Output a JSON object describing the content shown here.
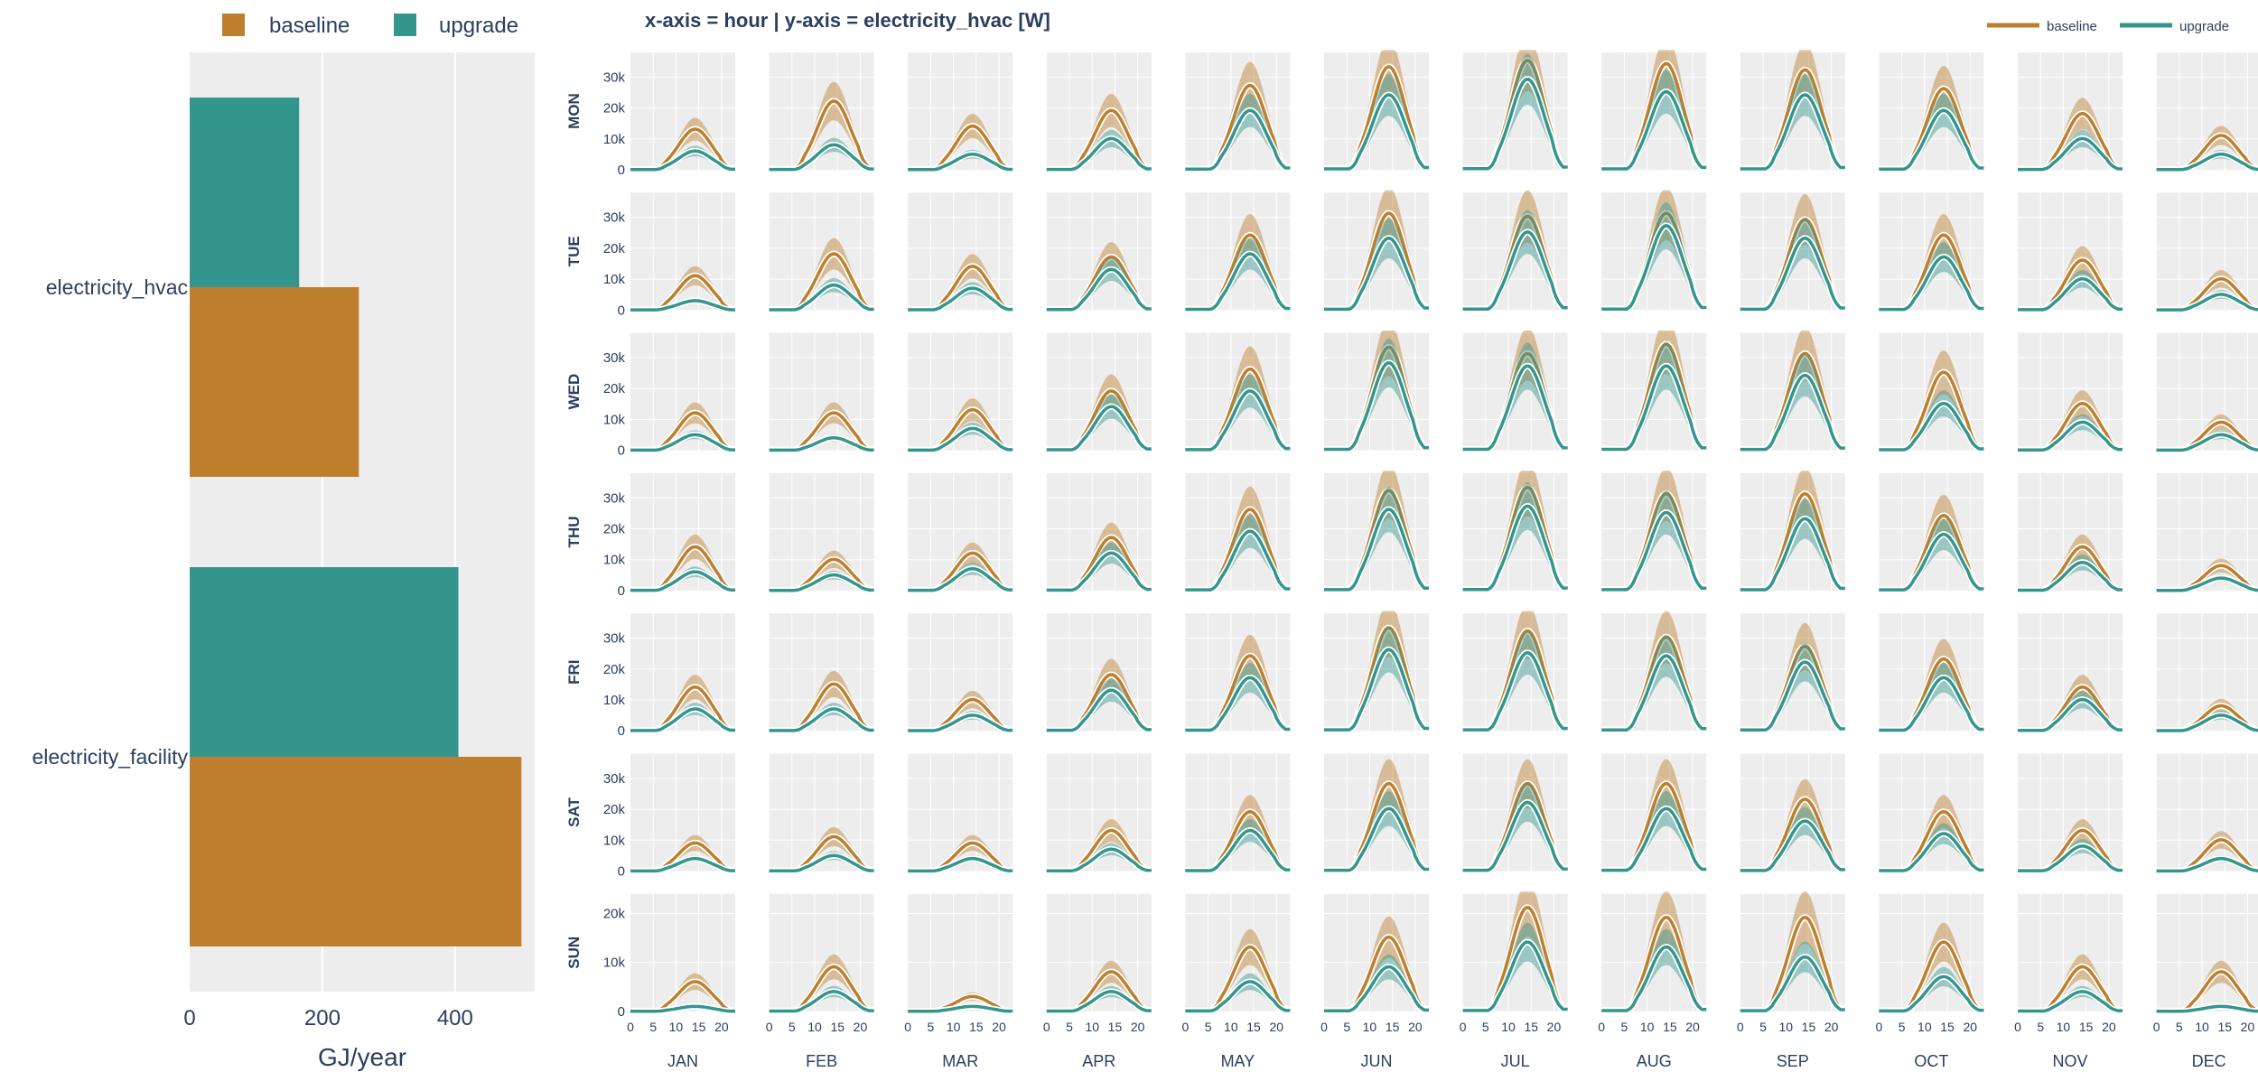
{
  "colors": {
    "baseline": "#BD7E2D",
    "upgrade": "#34958D",
    "plot_bg": "#EDEDED",
    "grid": "#FFFFFF",
    "text": "#2A3F5F"
  },
  "legend": {
    "baseline_label": "baseline",
    "upgrade_label": "upgrade"
  },
  "grid_title": "x-axis = hour | y-axis = electricity_hvac [W]",
  "chart_data": [
    {
      "type": "bar",
      "orientation": "horizontal",
      "categories": [
        "electricity_hvac",
        "electricity_facility"
      ],
      "series": [
        {
          "name": "baseline",
          "values": [
            255,
            500
          ]
        },
        {
          "name": "upgrade",
          "values": [
            165,
            405
          ]
        }
      ],
      "xlabel": "GJ/year",
      "xlim": [
        0,
        520
      ],
      "xticks": [
        0,
        200,
        400
      ],
      "legend_position": "top"
    },
    {
      "type": "line",
      "facets": "row = weekday, column = month",
      "rows": [
        "MON",
        "TUE",
        "WED",
        "THU",
        "FRI",
        "SAT",
        "SUN"
      ],
      "columns": [
        "JAN",
        "FEB",
        "MAR",
        "APR",
        "MAY",
        "JUN",
        "JUL",
        "AUG",
        "SEP",
        "OCT",
        "NOV",
        "DEC"
      ],
      "x": "hour",
      "xlim": [
        0,
        23
      ],
      "xticks": [
        0,
        5,
        10,
        15,
        20
      ],
      "ylim_weekday": [
        0,
        38000
      ],
      "yticks_weekday": [
        "0",
        "10k",
        "20k",
        "30k"
      ],
      "ylim_sun": [
        0,
        24000
      ],
      "yticks_sun": [
        "0",
        "10k",
        "20k"
      ],
      "shape_note": "daily profile: near zero 0-5h, rising 7-8h, peak about 14-15h, falling 19-21h",
      "series": [
        {
          "name": "baseline",
          "peak_W": [
            [
              13000,
              22000,
              14000,
              19000,
              27000,
              33000,
              35000,
              34000,
              32000,
              26000,
              18000,
              11000
            ],
            [
              11000,
              18000,
              14000,
              17000,
              24000,
              31000,
              30000,
              31000,
              29000,
              24000,
              16000,
              10000
            ],
            [
              12000,
              12000,
              13000,
              19000,
              26000,
              33000,
              31000,
              34000,
              31000,
              25000,
              15000,
              9000
            ],
            [
              14000,
              10000,
              12000,
              17000,
              26000,
              32000,
              33000,
              31000,
              31000,
              24000,
              14000,
              8000
            ],
            [
              14000,
              15000,
              10000,
              18000,
              24000,
              33000,
              32000,
              30000,
              27000,
              23000,
              14000,
              8000
            ],
            [
              9000,
              11000,
              9000,
              13000,
              19000,
              28000,
              28000,
              28000,
              23000,
              19000,
              13000,
              10000
            ],
            [
              6000,
              9000,
              3000,
              8000,
              13000,
              15000,
              21000,
              19000,
              19000,
              14000,
              9000,
              8000
            ]
          ]
        },
        {
          "name": "upgrade",
          "peak_W": [
            [
              6000,
              8000,
              5000,
              10000,
              19000,
              24000,
              29000,
              25000,
              24000,
              19000,
              10000,
              5000
            ],
            [
              3000,
              8000,
              7000,
              13000,
              18000,
              23000,
              25000,
              27000,
              23000,
              17000,
              10000,
              5000
            ],
            [
              5000,
              4000,
              7000,
              14000,
              19000,
              28000,
              27000,
              27000,
              24000,
              15000,
              9000,
              5000
            ],
            [
              6000,
              5000,
              7000,
              12000,
              19000,
              26000,
              27000,
              25000,
              23000,
              18000,
              9000,
              4000
            ],
            [
              7000,
              7000,
              5000,
              13000,
              17000,
              26000,
              25000,
              24000,
              22000,
              17000,
              10000,
              5000
            ],
            [
              4000,
              5000,
              4000,
              7000,
              13000,
              20000,
              22000,
              20000,
              16000,
              12000,
              8000,
              4000
            ],
            [
              1000,
              4000,
              1000,
              4000,
              6000,
              9000,
              14000,
              13000,
              11000,
              7000,
              4000,
              1000
            ]
          ]
        }
      ],
      "legend_position": "top-right"
    }
  ]
}
